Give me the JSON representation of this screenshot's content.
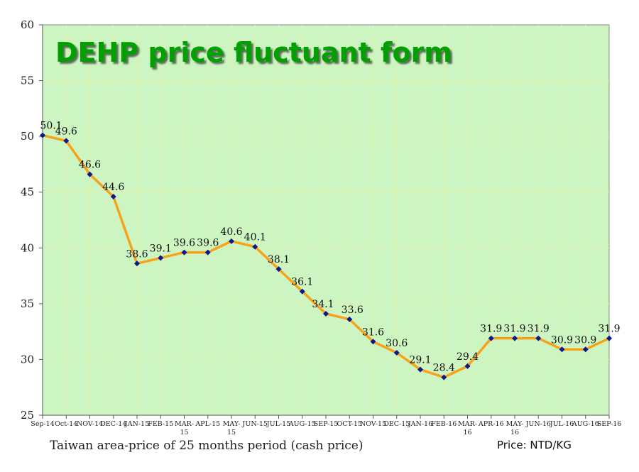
{
  "chart_data": {
    "type": "line",
    "title": "DEHP price fluctuant form",
    "footnote": "Taiwan area-price of 25 months period (cash price)",
    "unit": "Price: NTD/KG",
    "categories": [
      "Sep-14",
      "Oct-14",
      "NOV-14",
      "DEC-14",
      "JAN-15",
      "FEB-15",
      "MAR-15",
      "APL-15",
      "MAY-15",
      "JUN-15",
      "JUL-15",
      "AUG-15",
      "SEP-15",
      "OCT-15",
      "NOV-15",
      "DEC-15",
      "JAN-16",
      "FEB-16",
      "MAR-16",
      "APR-16",
      "MAY-16",
      "JUN-16",
      "JUL-16",
      "AUG-16",
      "SEP-16"
    ],
    "tick_labels": [
      [
        "Sep-14"
      ],
      [
        "Oct-14"
      ],
      [
        "NOV-14"
      ],
      [
        "DEC-14"
      ],
      [
        "JAN-15"
      ],
      [
        "FEB-15"
      ],
      [
        "MAR-",
        "15"
      ],
      [
        "APL-15"
      ],
      [
        "MAY-",
        "15"
      ],
      [
        "JUN-15"
      ],
      [
        "JUL-15"
      ],
      [
        "AUG-15"
      ],
      [
        "SEP-15"
      ],
      [
        "OCT-15"
      ],
      [
        "NOV-15"
      ],
      [
        "DEC-15"
      ],
      [
        "JAN-16"
      ],
      [
        "FEB-16"
      ],
      [
        "MAR-",
        "16"
      ],
      [
        "APR-16"
      ],
      [
        "MAY-",
        "16"
      ],
      [
        "JUN-16"
      ],
      [
        "JUL-16"
      ],
      [
        "AUG-16"
      ],
      [
        "SEP-16"
      ]
    ],
    "series": [
      {
        "values": [
          50.1,
          49.6,
          46.6,
          44.6,
          38.6,
          39.1,
          39.6,
          39.6,
          40.6,
          40.1,
          38.1,
          36.1,
          34.1,
          33.6,
          31.6,
          30.6,
          29.1,
          28.4,
          29.4,
          31.9,
          31.9,
          31.9,
          30.9,
          30.9,
          31.9
        ],
        "data_labels": [
          "50.1",
          "49.6",
          "46.6",
          "44.6",
          "38.6",
          "39.1",
          "39.6",
          "39.6",
          "40.6",
          "40.1",
          "38.1",
          "36.1",
          "34.1",
          "33.6",
          "31.6",
          "30.6",
          "29.1",
          "28.4",
          "29.4",
          "31.9",
          "31.9",
          "31.9",
          "30.9",
          "30.9",
          "31.9"
        ],
        "line_color": "#f7a21b",
        "marker_color": "#0a1a8c"
      }
    ],
    "ylim": [
      25,
      60
    ],
    "yticks": [
      25,
      30,
      35,
      40,
      45,
      50,
      55,
      60
    ],
    "grid": true,
    "plot_background": "#ccf5c2",
    "grid_color": "#e3f0a8"
  }
}
